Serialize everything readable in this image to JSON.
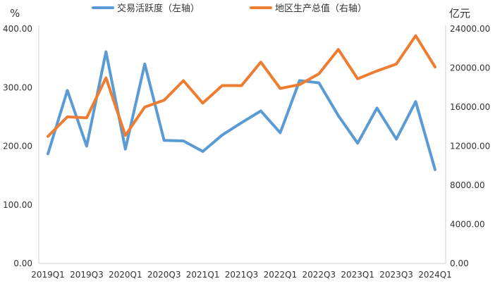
{
  "chart_data": {
    "type": "line",
    "categories": [
      "2019Q1",
      "2019Q2",
      "2019Q3",
      "2019Q4",
      "2020Q1",
      "2020Q2",
      "2020Q3",
      "2020Q4",
      "2021Q1",
      "2021Q2",
      "2021Q3",
      "2021Q4",
      "2022Q1",
      "2022Q2",
      "2022Q3",
      "2022Q4",
      "2023Q1",
      "2023Q2",
      "2023Q3",
      "2023Q4",
      "2024Q1"
    ],
    "x_tick_labels": [
      "2019Q1",
      "2019Q3",
      "2020Q1",
      "2020Q3",
      "2021Q1",
      "2021Q3",
      "2022Q1",
      "2022Q3",
      "2023Q1",
      "2023Q3",
      "2024Q1"
    ],
    "left_axis": {
      "unit": "%",
      "ylim": [
        0,
        400
      ],
      "ticks": [
        "0.00",
        "100.00",
        "200.00",
        "300.00",
        "400.00"
      ]
    },
    "right_axis": {
      "unit": "亿元",
      "ylim": [
        0,
        24000
      ],
      "ticks": [
        "0.00",
        "4000.00",
        "8000.00",
        "12000.00",
        "16000.00",
        "20000.00",
        "24000.00"
      ]
    },
    "series": [
      {
        "name": "交易活跃度（左轴）",
        "axis": "left",
        "color": "#5b9bd5",
        "values": [
          187,
          295,
          200,
          361,
          195,
          340,
          210,
          209,
          191,
          219,
          240,
          260,
          223,
          312,
          308,
          252,
          205,
          265,
          212,
          276,
          160
        ]
      },
      {
        "name": "地区生产总值（右轴）",
        "axis": "right",
        "color": "#ed7d31",
        "values": [
          13000,
          15000,
          14900,
          19000,
          13100,
          16000,
          16700,
          18700,
          16400,
          18200,
          18200,
          20600,
          17900,
          18300,
          19400,
          21900,
          18900,
          19700,
          20400,
          23300,
          20100
        ]
      }
    ],
    "legend_position": "top",
    "grid": false
  }
}
